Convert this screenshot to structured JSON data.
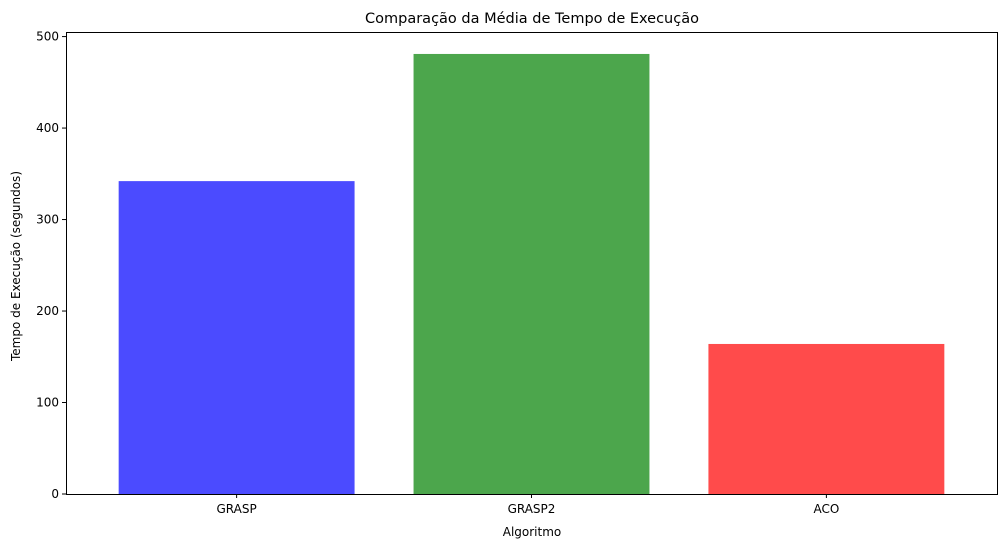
{
  "chart_data": {
    "type": "bar",
    "title": "Comparação da Média de Tempo de Execução",
    "xlabel": "Algoritmo",
    "ylabel": "Tempo de Execução (segundos)",
    "categories": [
      "GRASP",
      "GRASP2",
      "ACO"
    ],
    "values": [
      342,
      481,
      164
    ],
    "colors": [
      "#4b4bff",
      "#4ca64c",
      "#ff4b4b"
    ],
    "ylim": [
      0,
      505
    ],
    "yticks": [
      0,
      100,
      200,
      300,
      400,
      500
    ],
    "grid": false,
    "legend": "none"
  }
}
